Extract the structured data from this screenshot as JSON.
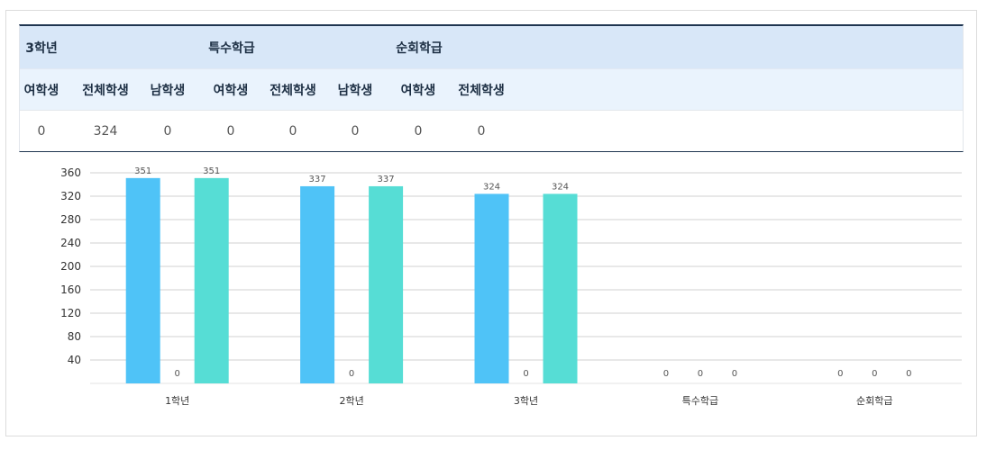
{
  "table": {
    "row1": [
      "3학년",
      "특수학급",
      "순회학급"
    ],
    "row2": [
      "여학생",
      "전체학생",
      "남학생",
      "여학생",
      "전체학생",
      "남학생",
      "여학생",
      "전체학생"
    ],
    "row3": [
      "0",
      "324",
      "0",
      "0",
      "0",
      "0",
      "0",
      "0"
    ]
  },
  "chart_data": {
    "type": "bar",
    "categories": [
      "1학년",
      "2학년",
      "3학년",
      "특수학급",
      "순회학급"
    ],
    "series": [
      {
        "values": [
          351,
          337,
          324,
          0,
          0
        ],
        "color": "#4fc3f7"
      },
      {
        "values": [
          0,
          0,
          0,
          0,
          0
        ],
        "color": "#4fc3f7"
      },
      {
        "values": [
          351,
          337,
          324,
          0,
          0
        ],
        "color": "#56ddd5"
      }
    ],
    "yticks": [
      40,
      80,
      120,
      160,
      200,
      240,
      280,
      320,
      360
    ],
    "ylim": [
      0,
      360
    ],
    "grid": true
  }
}
